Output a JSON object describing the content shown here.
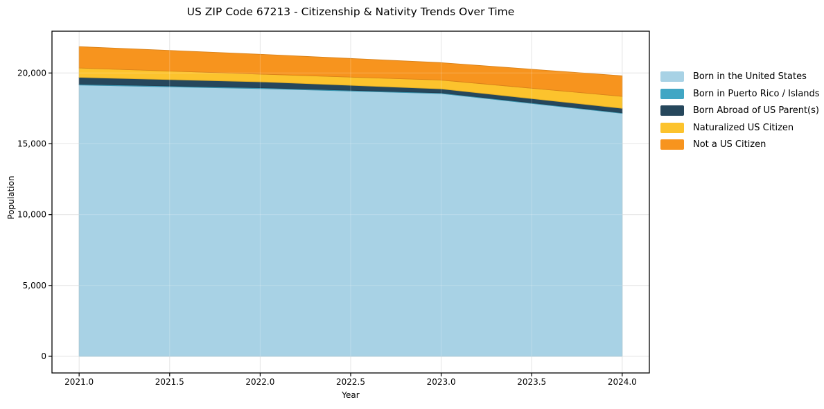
{
  "title": "US ZIP Code 67213 - Citizenship & Nativity Trends Over Time",
  "chart_data": {
    "type": "area",
    "stacked": true,
    "title": "US ZIP Code 67213 - Citizenship & Nativity Trends Over Time",
    "xlabel": "Year",
    "ylabel": "Population",
    "x": [
      2021,
      2022,
      2023,
      2024
    ],
    "series": [
      {
        "name": "Born in the United States",
        "color": "#a8d2e5",
        "values": [
          19150,
          18900,
          18550,
          17150
        ]
      },
      {
        "name": "Born in Puerto Rico / Islands",
        "color": "#41a6c4",
        "values": [
          60,
          60,
          50,
          40
        ]
      },
      {
        "name": "Born Abroad of US Parent(s)",
        "color": "#26475c",
        "values": [
          480,
          420,
          280,
          320
        ]
      },
      {
        "name": "Naturalized US Citizen",
        "color": "#fcc32d",
        "values": [
          660,
          540,
          620,
          840
        ]
      },
      {
        "name": "Not a US Citizen",
        "color": "#f7941e",
        "values": [
          1510,
          1400,
          1230,
          1450
        ]
      }
    ],
    "totals": [
      21860,
      21320,
      20730,
      19800
    ],
    "xlim": [
      2020.85,
      2024.15
    ],
    "ylim": [
      -1175,
      22950
    ],
    "x_ticks": [
      2021.0,
      2021.5,
      2022.0,
      2022.5,
      2023.0,
      2023.5,
      2024.0
    ],
    "x_tick_labels": [
      "2021.0",
      "2021.5",
      "2022.0",
      "2022.5",
      "2023.0",
      "2023.5",
      "2024.0"
    ],
    "y_ticks": [
      0,
      5000,
      10000,
      15000,
      20000
    ],
    "y_tick_labels": [
      "0",
      "5,000",
      "10,000",
      "15,000",
      "20,000"
    ],
    "grid": true,
    "grid_color": "#dedede",
    "spine_color": "#000000",
    "legend_position": "right-outside"
  }
}
